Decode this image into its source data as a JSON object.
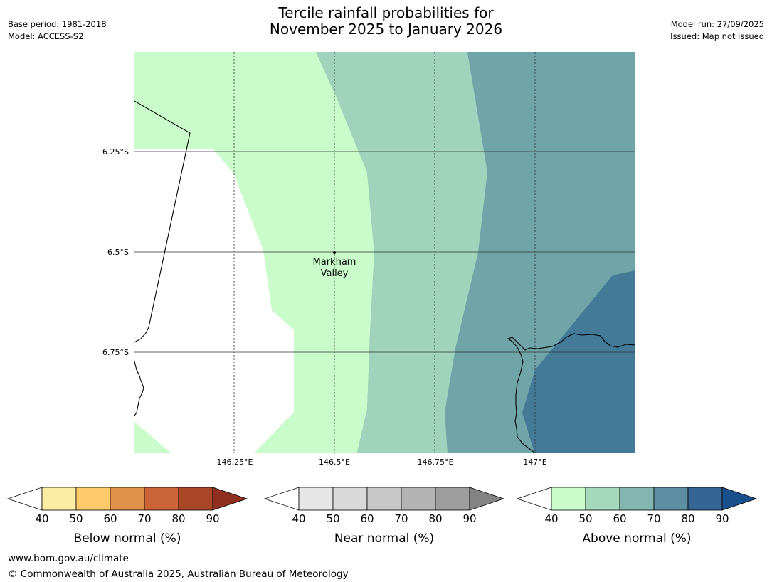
{
  "header": {
    "title_line1": "Tercile rainfall probabilities for",
    "title_line2": "November 2025 to January 2026",
    "base_period": "Base period: 1981-2018",
    "model": "Model: ACCESS-S2",
    "model_run": "Model run: 27/09/2025",
    "issued": "Issued: Map not issued"
  },
  "map": {
    "lat_labels": [
      "6.25°S",
      "6.5°S",
      "6.75°S"
    ],
    "lon_labels": [
      "146.25°E",
      "146.5°E",
      "146.75°E",
      "147°E"
    ],
    "place": {
      "name_line1": "Markham",
      "name_line2": "Valley"
    },
    "colors": {
      "above_40_50": "#c9fcca",
      "above_50_60": "#9fd3bb",
      "above_60_70": "#6fa4a8",
      "above_70_80": "#427a98",
      "no_data": "#ffffff"
    }
  },
  "legends": [
    {
      "label": "Below normal (%)",
      "ticks": [
        "40",
        "50",
        "60",
        "70",
        "80",
        "90"
      ],
      "colors": [
        "#fdeda2",
        "#fdca69",
        "#e0924a",
        "#cb6537",
        "#aa4628"
      ],
      "over": "#8f2f20"
    },
    {
      "label": "Near normal (%)",
      "ticks": [
        "40",
        "50",
        "60",
        "70",
        "80",
        "90"
      ],
      "colors": [
        "#e6e6e6",
        "#d9d9d9",
        "#c8c8c8",
        "#b3b3b3",
        "#9e9e9e"
      ],
      "over": "#838383"
    },
    {
      "label": "Above normal (%)",
      "ticks": [
        "40",
        "50",
        "60",
        "70",
        "80",
        "90"
      ],
      "colors": [
        "#c9fcca",
        "#a5d9bb",
        "#82b6ae",
        "#5b8fa1",
        "#356593"
      ],
      "over": "#194f8b"
    }
  ],
  "footer": {
    "url": "www.bom.gov.au/climate",
    "copyright": "© Commonwealth of Australia 2025, Australian Bureau of Meteorology"
  }
}
